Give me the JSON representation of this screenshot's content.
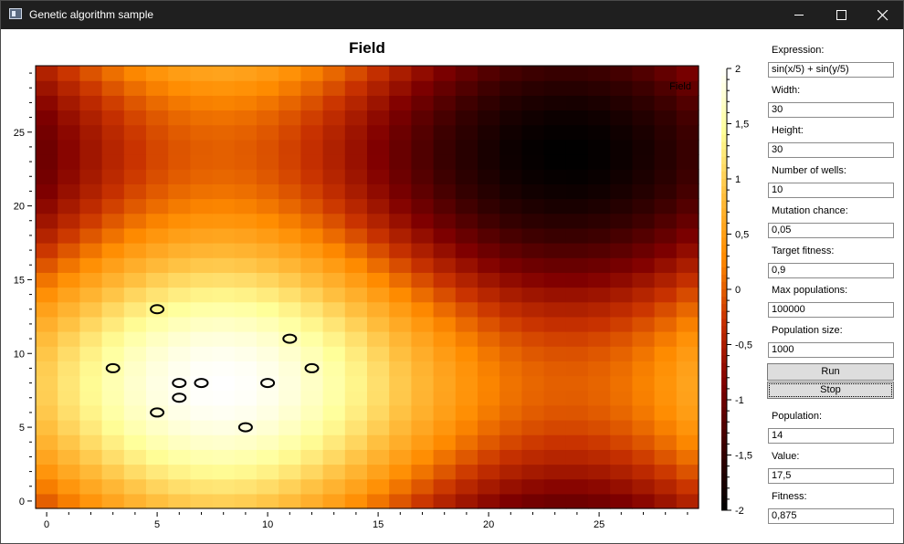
{
  "window": {
    "title": "Genetic algorithm sample",
    "controls": {
      "minimize": "minimize-icon",
      "maximize": "maximize-icon",
      "close": "close-icon"
    }
  },
  "panel": {
    "expression_label": "Expression:",
    "expression_value": "sin(x/5) + sin(y/5)",
    "width_label": "Width:",
    "width_value": "30",
    "height_label": "Height:",
    "height_value": "30",
    "wells_label": "Number of wells:",
    "wells_value": "10",
    "mutation_label": "Mutation chance:",
    "mutation_value": "0,05",
    "target_label": "Target fitness:",
    "target_value": "0,9",
    "maxpop_label": "Max populations:",
    "maxpop_value": "100000",
    "popsize_label": "Population size:",
    "popsize_value": "1000",
    "run_label": "Run",
    "stop_label": "Stop",
    "population_label": "Population:",
    "population_value": "14",
    "value_label": "Value:",
    "value_value": "17,5",
    "fitness_label": "Fitness:",
    "fitness_value": "0,875"
  },
  "chart_data": {
    "type": "heatmap",
    "title": "Field",
    "series_label": "Field",
    "expression": "sin(x/5) + sin(y/5)",
    "grid_size": [
      30,
      30
    ],
    "xlim": [
      -0.5,
      29.5
    ],
    "ylim": [
      -0.5,
      29.5
    ],
    "x_ticks": [
      "0",
      "5",
      "10",
      "15",
      "20",
      "25"
    ],
    "y_ticks": [
      "0",
      "5",
      "10",
      "15",
      "20",
      "25"
    ],
    "colorbar": {
      "range": [
        -2,
        2
      ],
      "tick_labels": [
        "2",
        "1,5",
        "1",
        "0,5",
        "0",
        "-0,5",
        "-1",
        "-1,5",
        "-2"
      ],
      "colormap": [
        "#000000",
        "#3a0000",
        "#800000",
        "#c83200",
        "#ff8c00",
        "#ffc040",
        "#ffff9a",
        "#ffffff"
      ]
    },
    "wells": [
      {
        "x": 5,
        "y": 13
      },
      {
        "x": 11,
        "y": 11
      },
      {
        "x": 3,
        "y": 9
      },
      {
        "x": 12,
        "y": 9
      },
      {
        "x": 6,
        "y": 8
      },
      {
        "x": 7,
        "y": 8
      },
      {
        "x": 10,
        "y": 8
      },
      {
        "x": 6,
        "y": 7
      },
      {
        "x": 5,
        "y": 6
      },
      {
        "x": 9,
        "y": 5
      }
    ]
  }
}
